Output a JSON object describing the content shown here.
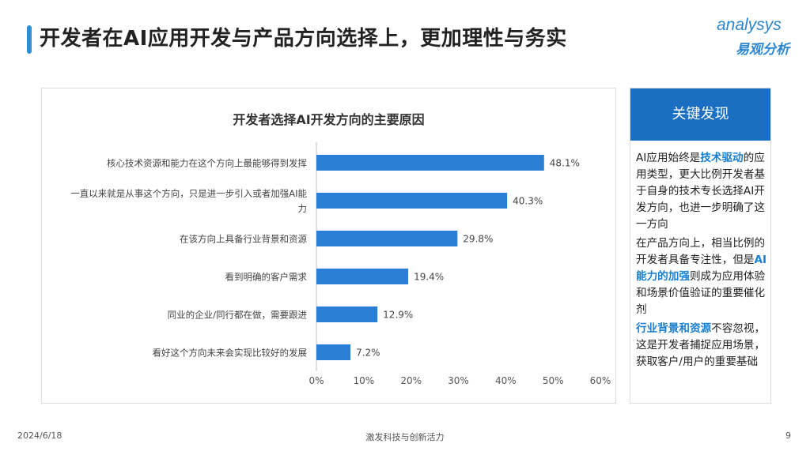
{
  "header": {
    "title": "开发者在AI应用开发与产品方向选择上，更加理性与务实"
  },
  "logo": {
    "brand": "analysys",
    "brand_cn": "易观分析"
  },
  "chart_data": {
    "type": "bar",
    "orientation": "horizontal",
    "title": "开发者选择AI开发方向的主要原因",
    "categories": [
      "核心技术资源和能力在这个方向上最能够得到发挥",
      "一直以来就是从事这个方向，只是进一步引入或者加强AI能力",
      "在该方向上具备行业背景和资源",
      "看到明确的客户需求",
      "同业的企业/同行都在做，需要跟进",
      "看好这个方向未来会实现比较好的发展"
    ],
    "values": [
      48.1,
      40.3,
      29.8,
      19.4,
      12.9,
      7.2
    ],
    "value_labels": [
      "48.1%",
      "40.3%",
      "29.8%",
      "19.4%",
      "12.9%",
      "7.2%"
    ],
    "xlim": [
      0,
      60
    ],
    "xticks": [
      "0%",
      "10%",
      "20%",
      "30%",
      "40%",
      "50%",
      "60%"
    ],
    "bar_color": "#2a7fd4",
    "grid": false,
    "legend": "none"
  },
  "panel": {
    "heading": "关键发现",
    "p1": {
      "a": "AI应用始终是",
      "b": "技术驱动",
      "c": "的应用类型，更大比例开发者基于自身的技术专长选择AI开发方向，也进一步明确了这一方向"
    },
    "p2": {
      "a": "在产品方向上，相当比例的开发者具备专注性，但是",
      "b": "AI能力的加强",
      "c": "则成为应用体验和场景价值验证的重要催化剂"
    },
    "p3": {
      "a": "行业背景和资源",
      "b": "不容忽视，这是开发者捕捉应用场景，获取客户/用户的重要基础"
    }
  },
  "footer": {
    "date": "2024/6/18",
    "center": "激发科技与创新活力",
    "page": "9"
  }
}
